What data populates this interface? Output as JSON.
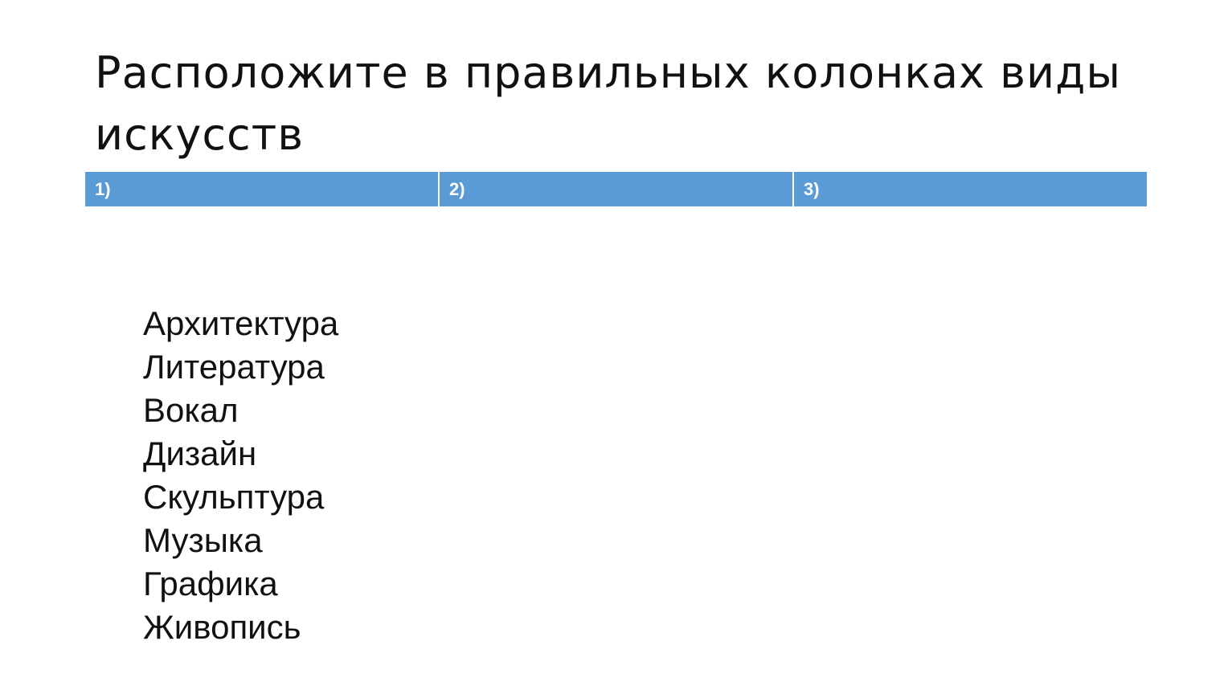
{
  "slide": {
    "title": "Расположите в правильных колонках виды искусств",
    "columns": [
      "1)",
      "2)",
      "3)"
    ],
    "header_color": "#5b9bd5",
    "items": [
      "Архитектура",
      "Литература",
      "Вокал",
      "Дизайн",
      "Скульптура",
      "Музыка",
      "Графика",
      "Живопись"
    ]
  }
}
